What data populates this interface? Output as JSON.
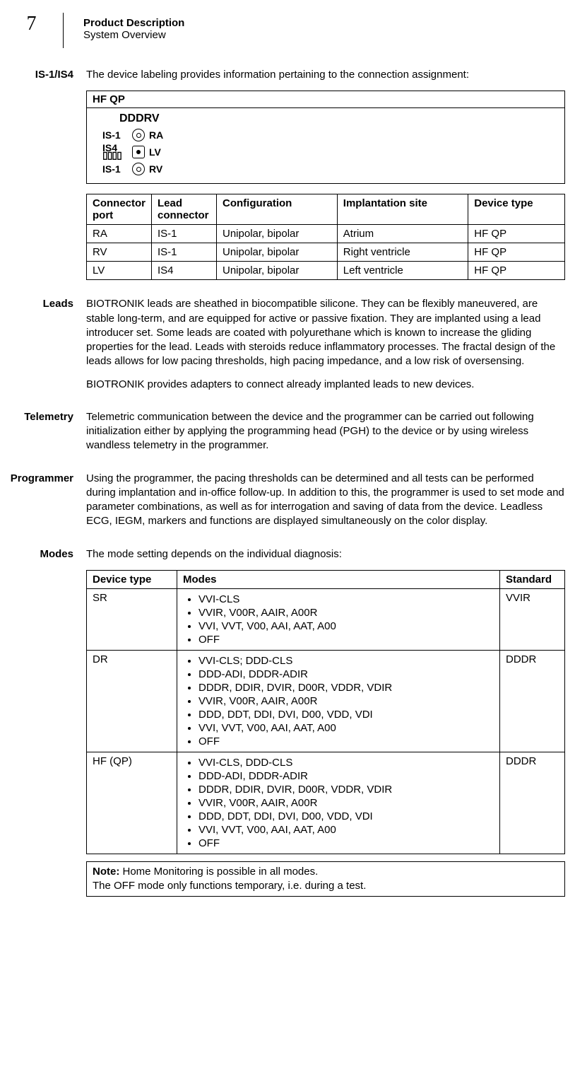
{
  "header": {
    "page_number": "7",
    "title": "Product Description",
    "subtitle": "System Overview"
  },
  "is1is4": {
    "label": "IS-1/IS4",
    "intro": "The device labeling provides information pertaining to the connection assignment:",
    "hf_title": "HF QP",
    "dddrv": "DDDRV",
    "rows": [
      {
        "left": "IS-1",
        "right": "RA"
      },
      {
        "left": "IS4",
        "right": "LV"
      },
      {
        "left": "IS-1",
        "right": "RV"
      }
    ]
  },
  "conn_table": {
    "headers": [
      "Connector port",
      "Lead connector",
      "Configuration",
      "Implantation site",
      "Device type"
    ],
    "rows": [
      [
        "RA",
        "IS-1",
        "Unipolar, bipolar",
        "Atrium",
        "HF QP"
      ],
      [
        "RV",
        "IS-1",
        "Unipolar, bipolar",
        "Right ventricle",
        "HF QP"
      ],
      [
        "LV",
        "IS4",
        "Unipolar, bipolar",
        "Left ventricle",
        "HF QP"
      ]
    ]
  },
  "leads": {
    "label": "Leads",
    "p1": "BIOTRONIK leads are sheathed in biocompatible silicone. They can be flexibly maneuvered, are stable long-term, and are equipped for active or passive fixation. They are implanted using a lead introducer set. Some leads are coated with polyurethane which is known to increase the gliding properties for the lead. Leads with steroids reduce inflammatory processes. The fractal design of the leads allows for low pacing thresholds, high pacing impedance, and a low risk of oversensing.",
    "p2": "BIOTRONIK provides adapters to connect already implanted leads to new devices."
  },
  "telemetry": {
    "label": "Telemetry",
    "p1": "Telemetric communication between the device and the programmer can be carried out following initialization either by applying the programming head (PGH) to the device or by using wireless wandless telemetry in the programmer."
  },
  "programmer": {
    "label": "Programmer",
    "p1": "Using the programmer, the pacing thresholds can be determined and all tests can be performed during implantation and in-office follow-up. In addition to this, the programmer is used to set mode and parameter combinations, as well as for interrogation and saving of data from the device. Leadless ECG, IEGM, markers and functions are displayed simultaneously on the color display."
  },
  "modes": {
    "label": "Modes",
    "intro": "The mode setting depends on the individual diagnosis:",
    "headers": [
      "Device type",
      "Modes",
      "Standard"
    ],
    "rows": [
      {
        "device": "SR",
        "items": [
          "VVI-CLS",
          "VVIR, V00R, AAIR, A00R",
          "VVI, VVT, V00, AAI, AAT, A00",
          "OFF"
        ],
        "standard": "VVIR"
      },
      {
        "device": "DR",
        "items": [
          "VVI-CLS; DDD-CLS",
          "DDD-ADI, DDDR-ADIR",
          "DDDR, DDIR, DVIR, D00R, VDDR, VDIR",
          "VVIR, V00R, AAIR, A00R",
          "DDD, DDT, DDI, DVI, D00, VDD, VDI",
          "VVI, VVT, V00, AAI, AAT, A00",
          "OFF"
        ],
        "standard": "DDDR"
      },
      {
        "device": "HF (QP)",
        "items": [
          "VVI-CLS, DDD-CLS",
          "DDD-ADI, DDDR-ADIR",
          "DDDR, DDIR, DVIR, D00R, VDDR, VDIR",
          "VVIR, V00R, AAIR, A00R",
          "DDD, DDT, DDI, DVI, D00, VDD, VDI",
          "VVI, VVT, V00, AAI, AAT, A00",
          "OFF"
        ],
        "standard": "DDDR"
      }
    ]
  },
  "note": {
    "bold": "Note:",
    "line1": " Home Monitoring is possible in all modes.",
    "line2": "The OFF mode only functions temporary, i.e. during a test."
  }
}
